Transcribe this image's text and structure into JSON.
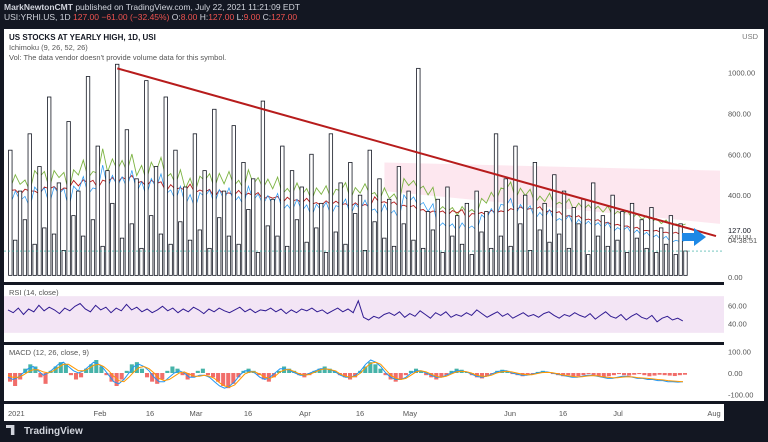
{
  "header": {
    "line1_author": "MarkNewtonCMT",
    "line1_rest": " published on TradingView.com, July 22, 2021 11:21:09 EDT",
    "symbol": "USI:YRHI.US, 1D",
    "last": "127.00",
    "change": "−61.00 (−32.45%)",
    "o_label": "O:",
    "o": "8.00",
    "h_label": "H:",
    "h": "127.00",
    "l_label": "L:",
    "l": "9.00",
    "c_label": "C:",
    "c": "127.00"
  },
  "legend": {
    "title": "US STOCKS AT YEARLY HIGH, 1D, USI",
    "ichimoku": "Ichimoku (9, 26, 52, 26)",
    "vol": "Vol: The data vendor doesn't provide volume data for this symbol.",
    "rsi": "RSI (14, close)",
    "macd": "MACD (12, 26, close, 9)"
  },
  "price_axis": {
    "currency": "USD",
    "ticks": [
      "1000.00",
      "800.00",
      "600.00",
      "400.00",
      "200.00",
      "0.00"
    ],
    "last_label": "127.00",
    "countdown": "04:38:51"
  },
  "rsi_axis": {
    "ticks": [
      "60.00",
      "40.00"
    ]
  },
  "macd_axis": {
    "ticks": [
      "100.00",
      "0.00",
      "-100.00"
    ]
  },
  "time_axis": {
    "ticks": [
      "2021",
      "Feb",
      "16",
      "Mar",
      "16",
      "Apr",
      "16",
      "May",
      "Jun",
      "16",
      "Jul",
      "Aug"
    ]
  },
  "branding": "TradingView",
  "colors": {
    "background": "#131722",
    "trendline": "#b71c1c",
    "kumo_fill": "#f8bbd0",
    "ichimoku_green": "#7cb342",
    "ichimoku_red": "#b71c1c",
    "ichimoku_blue": "#2196f3",
    "rsi_line": "#311b92",
    "macd_up": "#26a69a",
    "macd_down": "#ef5350",
    "arrow": "#1e88e5"
  },
  "chart_data": {
    "type": "candlestick",
    "title": "US STOCKS AT YEARLY HIGH, 1D, USI",
    "ylim": [
      0,
      1100
    ],
    "price_values": [
      620,
      180,
      420,
      280,
      700,
      160,
      540,
      240,
      880,
      210,
      460,
      130,
      760,
      300,
      420,
      200,
      980,
      280,
      640,
      150,
      520,
      360,
      1040,
      190,
      720,
      260,
      480,
      140,
      960,
      300,
      540,
      210,
      880,
      160,
      620,
      270,
      440,
      180,
      700,
      230,
      520,
      140,
      820,
      290,
      420,
      200,
      740,
      160,
      560,
      330,
      480,
      120,
      860,
      250,
      380,
      200,
      640,
      150,
      520,
      280,
      440,
      170,
      600,
      240,
      360,
      120,
      700,
      220,
      460,
      160,
      560,
      310,
      400,
      130,
      620,
      270,
      480,
      190,
      380,
      150,
      540,
      260,
      420,
      180,
      1020,
      140,
      320,
      230,
      380,
      120,
      440,
      200,
      300,
      160,
      360,
      110,
      420,
      220,
      320,
      140,
      700,
      200,
      480,
      150,
      640,
      260,
      400,
      130,
      560,
      230,
      360,
      170,
      500,
      210,
      420,
      140,
      340,
      260,
      380,
      110,
      460,
      200,
      300,
      150,
      400,
      180,
      320,
      120,
      360,
      190,
      280,
      140,
      340,
      120,
      240,
      160,
      300,
      110,
      260,
      127
    ],
    "trendline": {
      "from": 1020,
      "to": 200
    },
    "last_value": 127,
    "rsi_ylim": [
      20,
      80
    ],
    "rsi_values": [
      55,
      52,
      57,
      50,
      56,
      53,
      60,
      54,
      58,
      55,
      51,
      57,
      54,
      59,
      62,
      56,
      53,
      60,
      55,
      58,
      52,
      57,
      54,
      61,
      55,
      58,
      53,
      56,
      52,
      55,
      59,
      54,
      57,
      52,
      56,
      53,
      58,
      55,
      51,
      56,
      53,
      57,
      54,
      52,
      55,
      58,
      53,
      56,
      52,
      55,
      54,
      57,
      53,
      56,
      51,
      55,
      52,
      56,
      54,
      57,
      53,
      55,
      51,
      54,
      57,
      53,
      56,
      52,
      65,
      47,
      44,
      48,
      46,
      50,
      52,
      49,
      53,
      47,
      51,
      48,
      54,
      50,
      46,
      52,
      49,
      53,
      47,
      50,
      48,
      52,
      49,
      55,
      51,
      47,
      50,
      53,
      48,
      51,
      46,
      49,
      52,
      48,
      50,
      47,
      51,
      53,
      49,
      46,
      50,
      48,
      52,
      49,
      47,
      51,
      45,
      49,
      53,
      48,
      46,
      50,
      44,
      48,
      51,
      47,
      45,
      49,
      42,
      46,
      48,
      44,
      46,
      43
    ],
    "macd_ylim": [
      -120,
      110
    ],
    "macd_hist": [
      -40,
      -60,
      -30,
      20,
      40,
      30,
      -20,
      -50,
      10,
      30,
      50,
      40,
      -10,
      -30,
      -20,
      20,
      40,
      60,
      30,
      -10,
      -40,
      -60,
      -30,
      10,
      40,
      50,
      20,
      -20,
      -40,
      -50,
      -30,
      10,
      30,
      20,
      -10,
      -30,
      -20,
      10,
      20,
      -10,
      -20,
      -40,
      -60,
      -70,
      -50,
      -20,
      10,
      20,
      10,
      -10,
      -30,
      -40,
      -20,
      10,
      30,
      20,
      10,
      -10,
      -20,
      -10,
      10,
      20,
      30,
      20,
      10,
      -10,
      -20,
      -30,
      -20,
      10,
      30,
      50,
      40,
      20,
      -10,
      -30,
      -40,
      -30,
      -10,
      10,
      20,
      10,
      -10,
      -20,
      -30,
      -20,
      -10,
      10,
      20,
      15,
      5,
      -10,
      -20,
      -25,
      -15,
      -5,
      10,
      15,
      10,
      -5,
      -10,
      -15,
      -10,
      -5,
      5,
      10,
      5,
      -5,
      -10,
      -15,
      -10,
      -20,
      -15,
      -10,
      -5,
      -10,
      -15,
      -20,
      -15,
      -10,
      -5,
      -10,
      -12,
      -8,
      -5,
      -10,
      -15,
      -12,
      -8,
      -10,
      -12,
      -14,
      -10,
      -8
    ],
    "macd_line": [
      -20,
      -30,
      -20,
      0,
      20,
      30,
      10,
      -10,
      0,
      20,
      40,
      50,
      30,
      10,
      0,
      10,
      30,
      50,
      40,
      20,
      -10,
      -40,
      -50,
      -30,
      0,
      30,
      40,
      30,
      10,
      -20,
      -40,
      -40,
      -20,
      0,
      10,
      0,
      -20,
      -20,
      -10,
      -10,
      -20,
      -40,
      -60,
      -70,
      -60,
      -40,
      -10,
      10,
      10,
      0,
      -20,
      -30,
      -20,
      0,
      20,
      20,
      10,
      0,
      -10,
      -10,
      0,
      10,
      20,
      20,
      15,
      5,
      -10,
      -20,
      -20,
      -10,
      10,
      40,
      60,
      50,
      30,
      0,
      -20,
      -30,
      -30,
      -20,
      0,
      10,
      10,
      0,
      -10,
      -20,
      -20,
      -10,
      0,
      10,
      10,
      5,
      -5,
      -15,
      -20,
      -15,
      -5,
      5,
      10,
      10,
      0,
      -5,
      -10,
      -10,
      -5,
      0,
      5,
      5,
      0,
      -5,
      -10,
      -15,
      -20,
      -20,
      -15,
      -10,
      -10,
      -15,
      -20,
      -25,
      -25,
      -20,
      -15,
      -15,
      -20,
      -25,
      -25,
      -30,
      -30,
      -35,
      -35,
      -40,
      -40,
      -42,
      -40
    ],
    "signal_line": [
      -10,
      -20,
      -20,
      -10,
      5,
      15,
      15,
      5,
      0,
      10,
      25,
      40,
      40,
      25,
      10,
      10,
      20,
      35,
      40,
      30,
      10,
      -15,
      -35,
      -40,
      -20,
      5,
      25,
      30,
      20,
      0,
      -25,
      -35,
      -30,
      -15,
      0,
      5,
      -5,
      -15,
      -15,
      -10,
      -15,
      -25,
      -45,
      -60,
      -65,
      -55,
      -30,
      -5,
      5,
      5,
      -5,
      -20,
      -25,
      -15,
      5,
      15,
      15,
      5,
      -5,
      -10,
      -5,
      5,
      15,
      20,
      15,
      10,
      -5,
      -15,
      -20,
      -15,
      0,
      25,
      45,
      50,
      40,
      15,
      -10,
      -25,
      -30,
      -25,
      -10,
      5,
      10,
      5,
      -5,
      -15,
      -20,
      -15,
      -5,
      5,
      8,
      6,
      0,
      -10,
      -15,
      -15,
      -10,
      0,
      5,
      8,
      5,
      0,
      -5,
      -8,
      -8,
      -3,
      2,
      3,
      2,
      -3,
      -8,
      -12,
      -15,
      -18,
      -17,
      -14,
      -12,
      -13,
      -17,
      -20,
      -22,
      -22,
      -19,
      -17,
      -18,
      -21,
      -23,
      -25,
      -27,
      -30,
      -32,
      -35,
      -37,
      -39,
      -40
    ]
  }
}
